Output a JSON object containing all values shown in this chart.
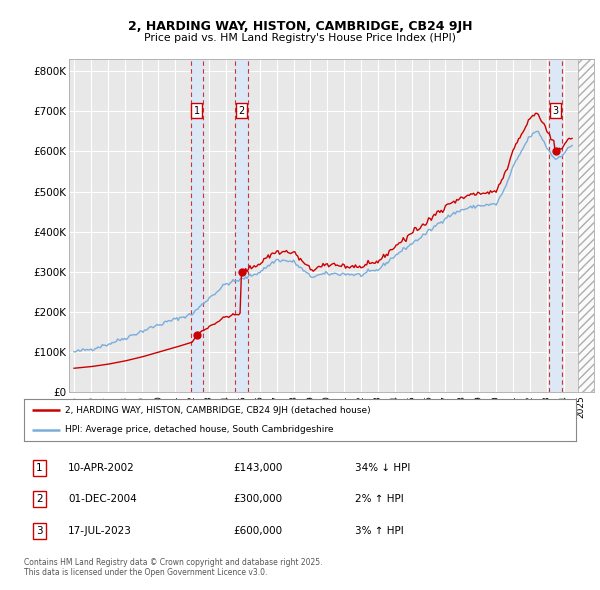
{
  "title_line1": "2, HARDING WAY, HISTON, CAMBRIDGE, CB24 9JH",
  "title_line2": "Price paid vs. HM Land Registry's House Price Index (HPI)",
  "background_color": "#ffffff",
  "plot_bg_color": "#e8e8e8",
  "grid_color": "#ffffff",
  "hpi_line_color": "#7aaddc",
  "price_line_color": "#cc0000",
  "sale_marker_color": "#cc0000",
  "ylim": [
    0,
    830000
  ],
  "yticks": [
    0,
    100000,
    200000,
    300000,
    400000,
    500000,
    600000,
    700000,
    800000
  ],
  "ytick_labels": [
    "£0",
    "£100K",
    "£200K",
    "£300K",
    "£400K",
    "£500K",
    "£600K",
    "£700K",
    "£800K"
  ],
  "xlim_start": 1994.7,
  "xlim_end": 2025.8,
  "sale_dates": [
    2002.28,
    2004.92,
    2023.54
  ],
  "sale_prices": [
    143000,
    300000,
    600000
  ],
  "sale_labels": [
    "1",
    "2",
    "3"
  ],
  "legend_line1": "2, HARDING WAY, HISTON, CAMBRIDGE, CB24 9JH (detached house)",
  "legend_line2": "HPI: Average price, detached house, South Cambridgeshire",
  "table_entries": [
    {
      "label": "1",
      "date": "10-APR-2002",
      "price": "£143,000",
      "hpi": "34% ↓ HPI"
    },
    {
      "label": "2",
      "date": "01-DEC-2004",
      "price": "£300,000",
      "hpi": "2% ↑ HPI"
    },
    {
      "label": "3",
      "date": "17-JUL-2023",
      "price": "£600,000",
      "hpi": "3% ↑ HPI"
    }
  ],
  "footer": "Contains HM Land Registry data © Crown copyright and database right 2025.\nThis data is licensed under the Open Government Licence v3.0.",
  "sale_vspan_color": "#dce8f5",
  "sale_vline_color": "#cc3333",
  "hatch_region_start": 2024.83,
  "hatch_region_end": 2026.0
}
